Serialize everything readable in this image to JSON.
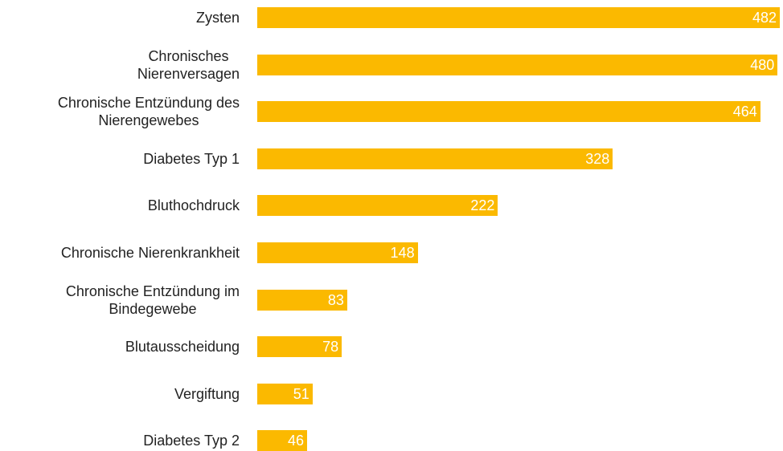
{
  "chart_data": {
    "type": "bar",
    "orientation": "horizontal",
    "categories": [
      "Zysten",
      "Chronisches\nNierenversagen",
      "Chronische Entzündung des\nNierengewebes",
      "Diabetes Typ 1",
      "Bluthochdruck",
      "Chronische Nierenkrankheit",
      "Chronische Entzündung im\nBindegewebe",
      "Blutausscheidung",
      "Vergiftung",
      "Diabetes Typ 2"
    ],
    "values": [
      482,
      480,
      464,
      328,
      222,
      148,
      83,
      78,
      51,
      46
    ],
    "color": "#fbb900"
  }
}
